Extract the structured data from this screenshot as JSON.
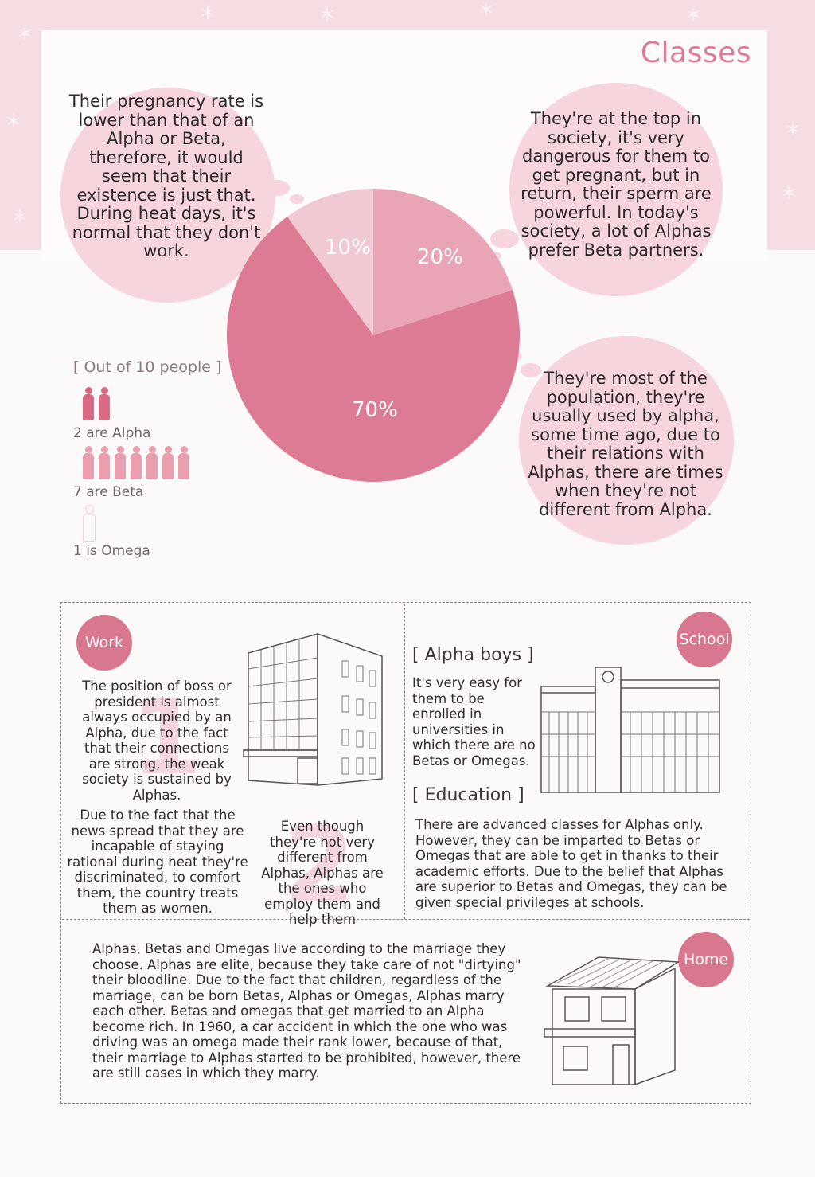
{
  "page": {
    "title": "Classes"
  },
  "bubbles": {
    "omega": "Their pregnancy rate is lower than that of an Alpha or Beta, therefore, it would seem that their existence is just that. During heat days, it's normal that they don't work.",
    "alpha": "They're at the top in society, it's very dangerous for them to get pregnant, but in return, their sperm are powerful. In today's society, a lot of Alphas prefer Beta partners.",
    "beta": "They're most of the population, they're usually used by alpha, some time ago, due to their relations with Alphas, there are times when they're not different from Alpha."
  },
  "chart_data": {
    "type": "pie",
    "slices": [
      {
        "label": "10%",
        "value": 10,
        "color": "#f1c9d2"
      },
      {
        "label": "20%",
        "value": 20,
        "color": "#e9a4b5"
      },
      {
        "label": "70%",
        "value": 70,
        "color": "#dc7b93"
      }
    ]
  },
  "people": {
    "header": "[ Out of 10 people ]",
    "alpha_label": "2 are Alpha",
    "beta_label": "7 are Beta",
    "omega_label": "1 is Omega",
    "alpha_color": "#d96a84",
    "beta_color": "#eb9eb0",
    "omega_color": "#f3d0d8"
  },
  "work": {
    "badge": "Work",
    "ghost_1": "1",
    "ghost_2": "2",
    "text_1": "The position of boss or president is almost always occupied by an Alpha, due to the fact that their connections are strong, the weak society is sustained by Alphas.",
    "text_2": "Due to the fact that the news spread that they are incapable of staying rational during heat they're discriminated, to comfort them, the country treats them as women.",
    "text_3": "Even though they're not very different from Alphas, Alphas are the ones who employ them and help them"
  },
  "school": {
    "badge": "School",
    "alpha_head": "[ Alpha boys ]",
    "alpha_text": "It's very easy for them to be enrolled in universities in which there are no Betas or Omegas.",
    "edu_head": "[ Education ]",
    "edu_text": "There are advanced classes for Alphas only. However, they can be imparted to Betas or Omegas that are able to get in thanks to their academic efforts. Due to the belief that Alphas are superior to Betas and Omegas, they can be given special privileges at schools."
  },
  "home": {
    "badge": "Home",
    "text": "Alphas, Betas and Omegas live according to the marriage they choose. Alphas are elite, because they take care of not \"dirtying\" their bloodline. Due to the fact that children, regardless of the marriage, can be born Betas, Alphas or Omegas, Alphas marry each other. Betas and omegas that get married to an Alpha become rich. In 1960, a car accident in which the one who was driving was an omega made their rank lower, because of that, their marriage to Alphas started to be prohibited, however, there are still cases in which they marry."
  }
}
